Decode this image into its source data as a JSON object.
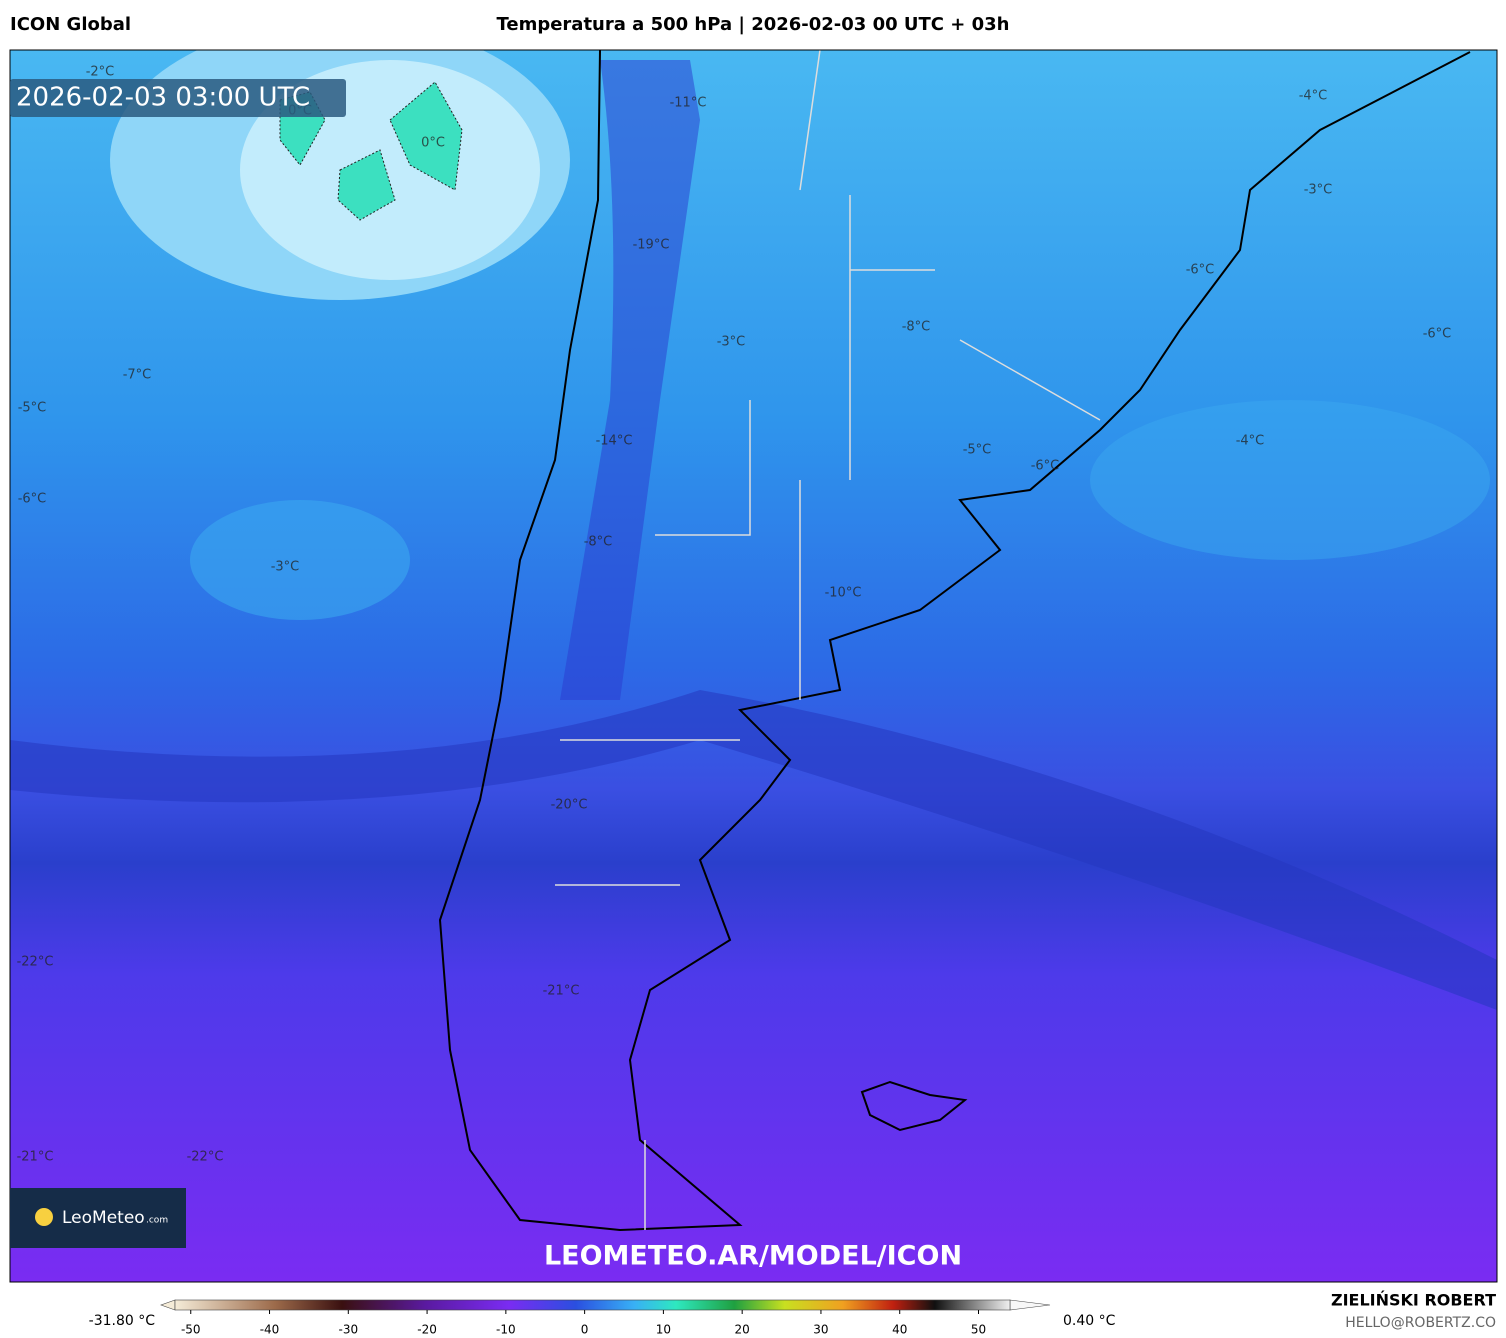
{
  "header": {
    "left": "ICON Global",
    "title": "Temperatura a 500 hPa | 2026-02-03 00 UTC + 03h"
  },
  "timestamp": "2026-02-03 03:00 UTC",
  "map_labels": [
    "-2°C",
    "0°C",
    "0°C",
    "-11°C",
    "-4°C",
    "-3°C",
    "-19°C",
    "-6°C",
    "-8°C",
    "-6°C",
    "-3°C",
    "-7°C",
    "-5°C",
    "-14°C",
    "-4°C",
    "-5°C",
    "-6°C",
    "-6°C",
    "-8°C",
    "-3°C",
    "-10°C",
    "-20°C",
    "-22°C",
    "-21°C",
    "-21°C",
    "-22°C"
  ],
  "logo": {
    "name": "LeoMeteo",
    "suffix": ".com"
  },
  "watermark": "LEOMETEO.AR/MODEL/ICON",
  "colorbar": {
    "min_label": "-31.80 °C",
    "max_label": "0.40 °C",
    "range": [
      -52,
      54
    ],
    "ticks": [
      -50,
      -40,
      -30,
      -20,
      -10,
      0,
      10,
      20,
      30,
      40,
      50
    ]
  },
  "credit": {
    "name": "ZIELIŃSKI ROBERT",
    "email": "HELLO@ROBERTZ.CO"
  }
}
